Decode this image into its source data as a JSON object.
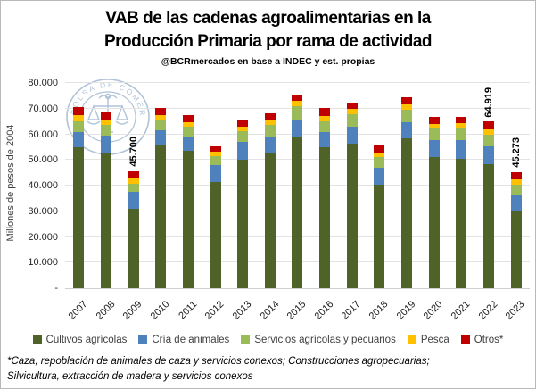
{
  "title": {
    "line1": "VAB de las cadenas agroalimentarias en la",
    "line2": "Producción Primaria por rama de actividad"
  },
  "subtitle": "@BCRmercados en base a INDEC y est. propias",
  "watermark": {
    "text": "BOLSA DE COMERCIO DE ROSARIO",
    "color": "#a3b8d2"
  },
  "chart_data": {
    "type": "bar",
    "stacked": true,
    "title": "VAB de las cadenas agroalimentarias en la Producción Primaria por rama de actividad",
    "ylabel": "Millones de pesos de 2004",
    "ylim": [
      0,
      80000
    ],
    "ytick_step": 10000,
    "ytick_labels": [
      "-",
      "10.000",
      "20.000",
      "30.000",
      "40.000",
      "50.000",
      "60.000",
      "70.000",
      "80.000"
    ],
    "grid": true,
    "legend_position": "bottom",
    "categories": [
      "2007",
      "2008",
      "2009",
      "2010",
      "2011",
      "2012",
      "2013",
      "2014",
      "2015",
      "2016",
      "2017",
      "2018",
      "2019",
      "2020",
      "2021",
      "2022",
      "2023"
    ],
    "series": [
      {
        "name": "Cultivos agrícolas",
        "color": "#4F6228",
        "values": [
          54900,
          52600,
          31000,
          55900,
          53500,
          41500,
          50100,
          52800,
          59300,
          54800,
          56500,
          40300,
          58300,
          51200,
          50600,
          48300,
          30000
        ]
      },
      {
        "name": "Cría de animales",
        "color": "#4F81BD",
        "values": [
          6000,
          6800,
          6400,
          5600,
          5600,
          6500,
          6800,
          6500,
          6600,
          6100,
          6500,
          6500,
          6500,
          6500,
          7100,
          7100,
          6300
        ]
      },
      {
        "name": "Servicios agrícolas y pecuarios",
        "color": "#9BBB59",
        "values": [
          4000,
          4100,
          3400,
          4000,
          3900,
          3600,
          4300,
          4500,
          5000,
          4200,
          5000,
          4400,
          4700,
          4400,
          4500,
          4300,
          4200
        ]
      },
      {
        "name": "Pesca",
        "color": "#FFC000",
        "values": [
          2600,
          2200,
          1900,
          1900,
          1700,
          1500,
          1800,
          1900,
          2000,
          2000,
          1900,
          1800,
          2200,
          2000,
          2000,
          2100,
          2000
        ]
      },
      {
        "name": "Otros*",
        "color": "#C00000",
        "values": [
          3000,
          2800,
          3000,
          2800,
          2800,
          2100,
          2600,
          2600,
          2500,
          3000,
          2600,
          3000,
          2800,
          2700,
          2600,
          3119,
          2773
        ]
      }
    ],
    "bar_totals": [
      70500,
      68500,
      45700,
      70200,
      67500,
      55200,
      65600,
      68300,
      75400,
      70100,
      72500,
      56000,
      74500,
      66800,
      66800,
      64919,
      45273
    ],
    "bar_labels": [
      "",
      "",
      "45.700",
      "",
      "",
      "",
      "",
      "",
      "",
      "",
      "",
      "",
      "",
      "",
      "",
      "64.919",
      "45.273"
    ]
  },
  "footnote": {
    "line1": "*Caza, repoblación de animales de caza y servicios conexos; Construcciones agropecuarias;",
    "line2": "Silvicultura, extracción de madera y servicios conexos"
  }
}
